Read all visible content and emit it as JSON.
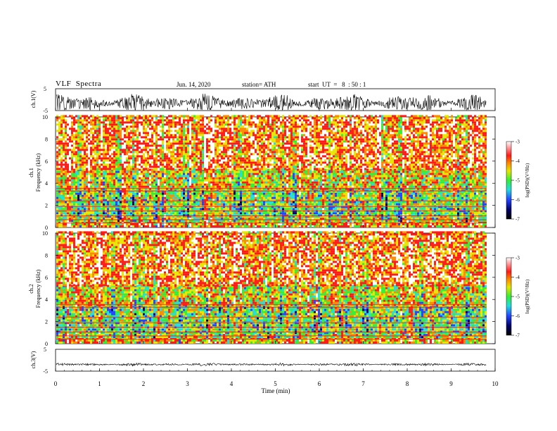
{
  "header": {
    "title": "VLF  Spectra",
    "date": "Jun. 14, 2020",
    "station": "station= ATH",
    "start": "start  UT  =   8  : 50 : 1"
  },
  "chart_data": [
    {
      "type": "line",
      "name": "ch1-waveform",
      "ylabel": "ch.1(V)",
      "ylim": [
        -5,
        5
      ],
      "yticks": [
        5,
        -5
      ],
      "xlim": [
        0,
        10
      ],
      "description_level": "high-amplitude noise spanning nearly full range"
    },
    {
      "type": "heatmap",
      "name": "ch1-spectrogram",
      "ylabel": "ch.1 Frequency (kHz)",
      "ylim": [
        0,
        10
      ],
      "yticks": [
        0,
        2,
        4,
        6,
        8,
        10
      ],
      "xlim": [
        0,
        9.8
      ],
      "bands_khz": [
        {
          "from": 0.0,
          "to": 0.5,
          "level": -4.2
        },
        {
          "from": 0.5,
          "to": 1.0,
          "level": -4.8
        },
        {
          "from": 1.0,
          "to": 2.0,
          "level": -5.0
        },
        {
          "from": 2.0,
          "to": 3.4,
          "level": -4.9
        },
        {
          "from": 3.4,
          "to": 5.2,
          "level": -4.5
        },
        {
          "from": 5.2,
          "to": 10.0,
          "level": -3.9
        }
      ],
      "colorbar": {
        "label": "log(PSD)(V²/Hz)",
        "range": [
          -7,
          -3
        ],
        "ticks": [
          -3,
          -4,
          -5,
          -6,
          -7
        ]
      }
    },
    {
      "type": "heatmap",
      "name": "ch2-spectrogram",
      "ylabel": "ch.2 Frequency (kHz)",
      "ylim": [
        0,
        10
      ],
      "yticks": [
        0,
        2,
        4,
        6,
        8,
        10
      ],
      "xlim": [
        0,
        9.8
      ],
      "bands_khz": [
        {
          "from": 0.0,
          "to": 0.5,
          "level": -4.2
        },
        {
          "from": 0.5,
          "to": 1.0,
          "level": -4.8
        },
        {
          "from": 1.0,
          "to": 2.0,
          "level": -5.0
        },
        {
          "from": 2.0,
          "to": 3.4,
          "level": -4.9
        },
        {
          "from": 3.4,
          "to": 5.2,
          "level": -4.5
        },
        {
          "from": 5.2,
          "to": 10.0,
          "level": -3.9
        }
      ],
      "colorbar": {
        "label": "log(PSD)(V²/Hz)",
        "range": [
          -7,
          -3
        ],
        "ticks": [
          -3,
          -4,
          -5,
          -6,
          -7
        ]
      }
    },
    {
      "type": "line",
      "name": "ch3-waveform",
      "ylabel": "ch.3(V)",
      "ylim": [
        -5,
        5
      ],
      "yticks": [
        5,
        -5
      ],
      "xlim": [
        0,
        10
      ],
      "description_level": "near-flat trace slightly below zero"
    }
  ],
  "xaxis": {
    "label": "Time  (min)",
    "ticks": [
      0,
      1,
      2,
      3,
      4,
      5,
      6,
      7,
      8,
      9,
      10
    ]
  },
  "labels": {
    "ch1_wave": "ch.1(V)",
    "ch1_spec_a": "ch.1",
    "ch1_spec_b": "Frequency  (kHz)",
    "ch2_spec_a": "ch.2",
    "ch2_spec_b": "Frequency  (kHz)",
    "ch3_wave": "ch.3(V)",
    "cbar": "log(PSD)(V²/Hz)"
  },
  "colors": {
    "white": "#ffffff",
    "red": "#ff1a1a",
    "orange": "#ff8a00",
    "yellow": "#e6e600",
    "green": "#33ee33",
    "cyan": "#22dddd",
    "blue": "#2244ff",
    "navy": "#000066",
    "black": "#000000"
  }
}
